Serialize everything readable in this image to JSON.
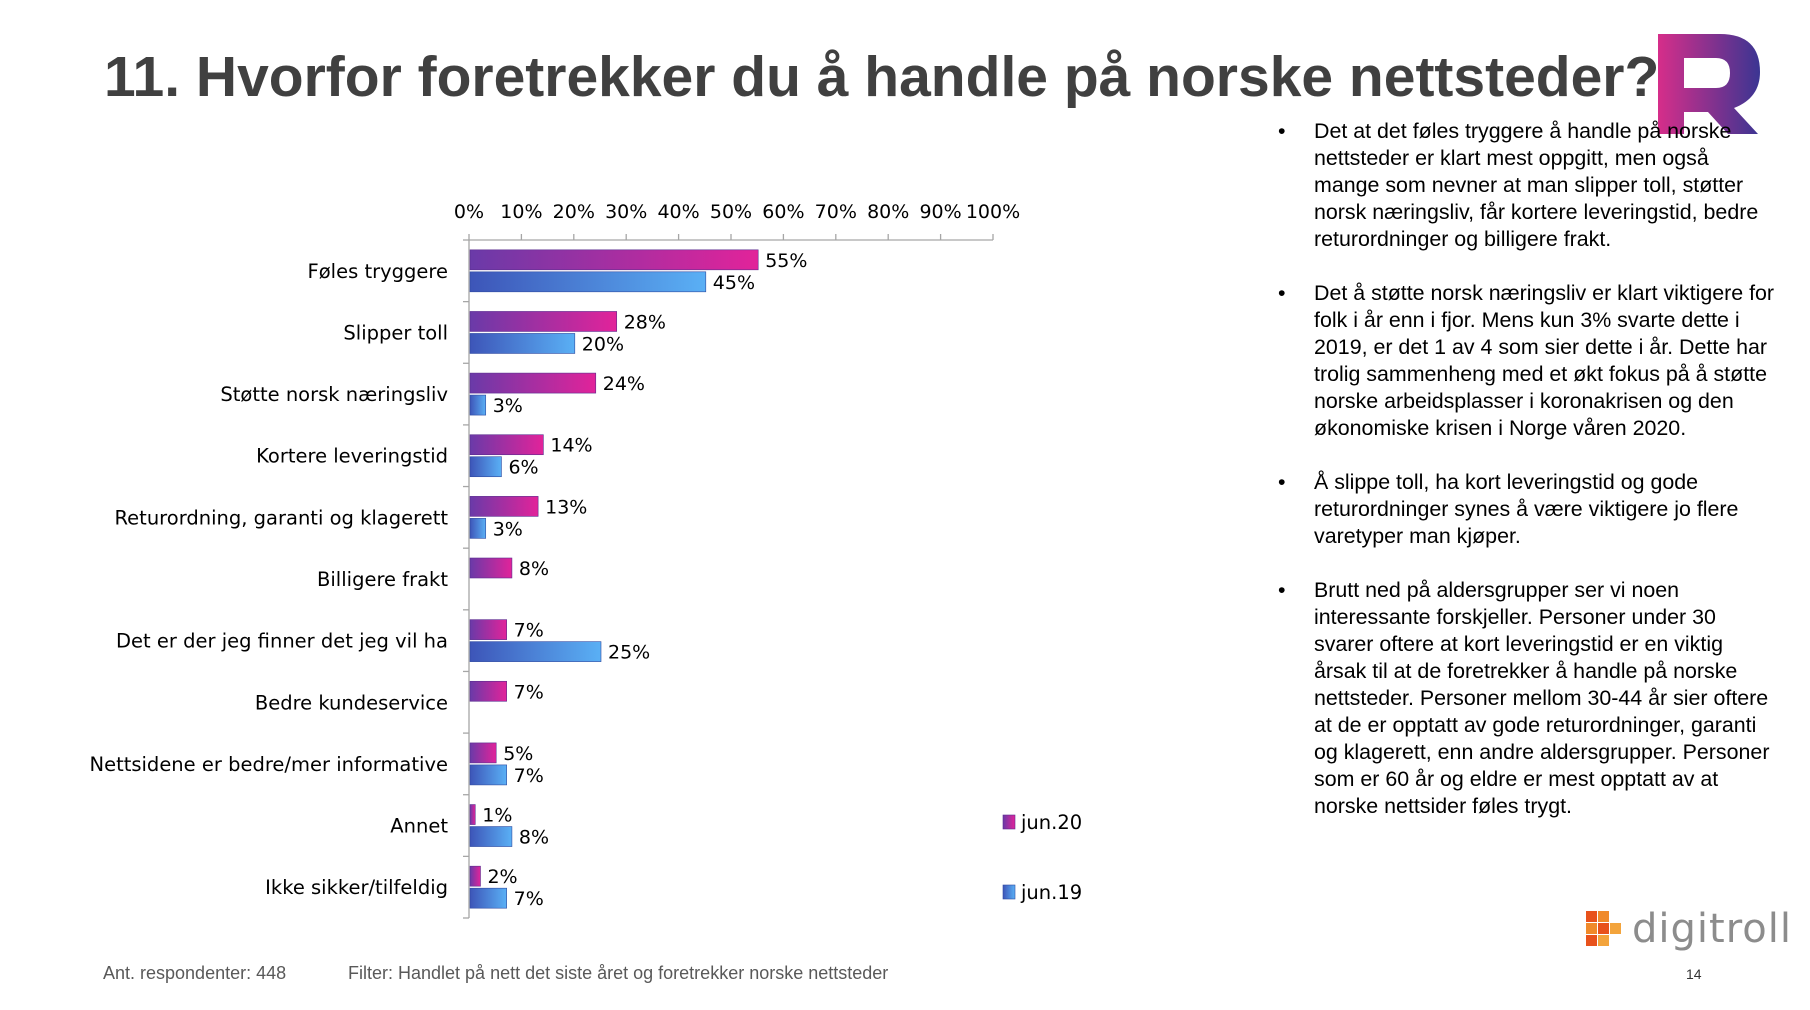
{
  "slide": {
    "title": "11. Hvorfor foretrekker du å handle på norske nettsteder?",
    "footer": {
      "respondents": "Ant. respondenter: 448",
      "filter": "Filter: Handlet på nett det siste året og foretrekker norske nettsteder",
      "page_number": "14"
    },
    "brand": {
      "name": "digitroll",
      "icon": "digitroll-logo-icon"
    },
    "logo": {
      "icon": "purple-r-logo-icon",
      "color_start": "#d62e8a",
      "color_end": "#3b3592"
    },
    "bullets": [
      "Det at det føles tryggere å handle på norske nettsteder er klart mest oppgitt, men også mange som nevner at man slipper toll, støtter norsk næringsliv, får kortere leveringstid, bedre returordninger og billigere frakt.",
      "Det å støtte norsk næringsliv er klart viktigere for folk i år enn i fjor. Mens kun 3% svarte dette i 2019, er det 1 av 4 som sier dette i år. Dette har trolig sammenheng med et økt fokus på å støtte norske arbeidsplasser i koronakrisen og den økonomiske krisen i Norge våren 2020.",
      "Å slippe toll, ha kort leveringstid og gode returordninger synes å være viktigere jo flere varetyper man kjøper.",
      "Brutt ned på aldersgrupper ser vi noen interessante forskjeller. Personer under 30 svarer oftere at kort leveringstid er en viktig årsak til at de foretrekker å handle på norske nettsteder. Personer mellom 30-44 år sier oftere at de er opptatt av gode returordninger, garanti og klagerett, enn andre aldersgrupper. Personer som er 60 år og eldre er mest opptatt av at norske nettsider føles trygt."
    ]
  },
  "chart_data": {
    "type": "bar",
    "orientation": "horizontal",
    "title": "",
    "xlabel": "",
    "ylabel": "",
    "xlim": [
      0,
      100
    ],
    "x_ticks": [
      "0%",
      "10%",
      "20%",
      "30%",
      "40%",
      "50%",
      "60%",
      "70%",
      "80%",
      "90%",
      "100%"
    ],
    "x_axis_position": "top",
    "grid": false,
    "legend_position": "bottom-right",
    "categories": [
      "Føles tryggere",
      "Slipper toll",
      "Støtte norsk næringsliv",
      "Kortere leveringstid",
      "Returordning, garanti og klagerett",
      "Billigere frakt",
      "Det er der jeg finner det jeg vil ha",
      "Bedre kundeservice",
      "Nettsidene er bedre/mer informative",
      "Annet",
      "Ikke sikker/tilfeldig"
    ],
    "series": [
      {
        "name": "jun.20",
        "values": [
          55,
          28,
          24,
          14,
          13,
          8,
          7,
          7,
          5,
          1,
          2
        ],
        "labels": [
          "55%",
          "28%",
          "24%",
          "14%",
          "13%",
          "8%",
          "7%",
          "7%",
          "5%",
          "1%",
          "2%"
        ],
        "color_start": "#6a3aa8",
        "color_end": "#e2239a"
      },
      {
        "name": "jun.19",
        "values": [
          45,
          20,
          3,
          6,
          3,
          null,
          25,
          null,
          7,
          8,
          7
        ],
        "labels": [
          "45%",
          "20%",
          "3%",
          "6%",
          "3%",
          "",
          "25%",
          "",
          "7%",
          "8%",
          "7%"
        ],
        "color_start": "#3d55b8",
        "color_end": "#5ab0f5"
      }
    ]
  }
}
